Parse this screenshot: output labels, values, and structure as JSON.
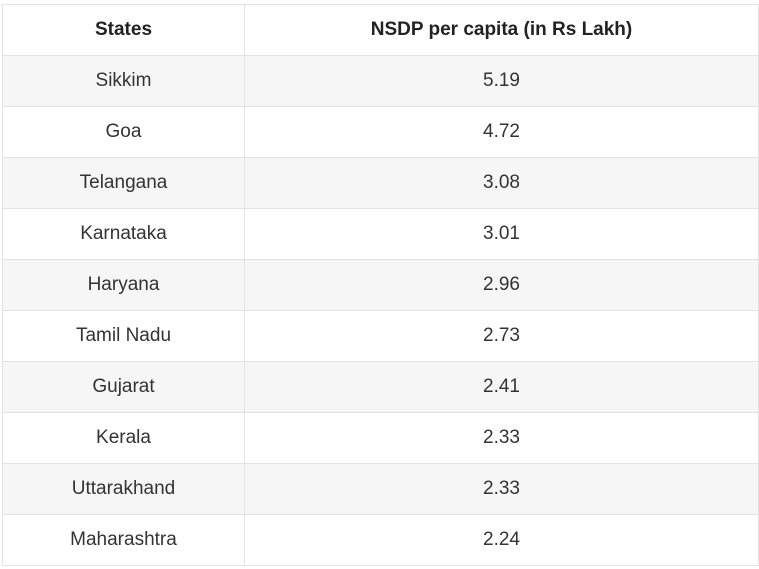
{
  "chart_data": {
    "type": "table",
    "columns": [
      "States",
      "NSDP per capita (in Rs Lakh)"
    ],
    "rows": [
      [
        "Sikkim",
        "5.19"
      ],
      [
        "Goa",
        "4.72"
      ],
      [
        "Telangana",
        "3.08"
      ],
      [
        "Karnataka",
        "3.01"
      ],
      [
        "Haryana",
        "2.96"
      ],
      [
        "Tamil Nadu",
        "2.73"
      ],
      [
        "Gujarat",
        "2.41"
      ],
      [
        "Kerala",
        "2.33"
      ],
      [
        "Uttarakhand",
        "2.33"
      ],
      [
        "Maharashtra",
        "2.24"
      ]
    ]
  }
}
